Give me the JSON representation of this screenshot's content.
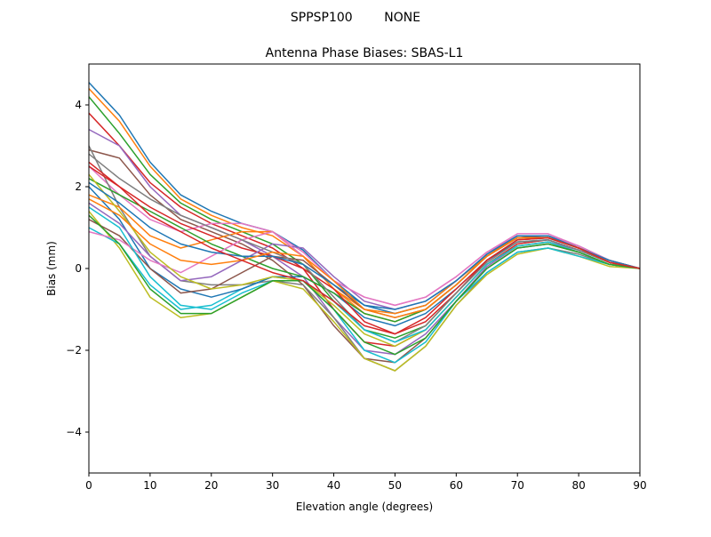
{
  "chart_data": {
    "type": "line",
    "suptitle": "SPPSP100        NONE",
    "title": "Antenna Phase Biases: SBAS-L1",
    "xlabel": "Elevation angle (degrees)",
    "ylabel": "Bias (mm)",
    "xlim": [
      0,
      90
    ],
    "ylim": [
      -5,
      5
    ],
    "xticks": [
      0,
      10,
      20,
      30,
      40,
      50,
      60,
      70,
      80,
      90
    ],
    "yticks": [
      -4,
      -2,
      0,
      2,
      4
    ],
    "ytick_labels": [
      "−4",
      "−2",
      "0",
      "2",
      "4"
    ],
    "grid": false,
    "legend": "none",
    "colors": [
      "#1f77b4",
      "#ff7f0e",
      "#2ca02c",
      "#d62728",
      "#9467bd",
      "#8c564b",
      "#e377c2",
      "#7f7f7f",
      "#bcbd22",
      "#17becf"
    ],
    "x": [
      0,
      5,
      10,
      15,
      20,
      25,
      30,
      35,
      40,
      45,
      50,
      55,
      60,
      65,
      70,
      75,
      80,
      85,
      90
    ],
    "series": [
      {
        "values": [
          4.55,
          3.75,
          2.6,
          1.8,
          1.4,
          1.1,
          0.9,
          0.45,
          -0.3,
          -0.9,
          -1.1,
          -0.9,
          -0.3,
          0.35,
          0.8,
          0.8,
          0.55,
          0.2,
          0
        ]
      },
      {
        "values": [
          4.4,
          3.6,
          2.5,
          1.7,
          1.3,
          1.0,
          0.8,
          0.3,
          -0.5,
          -1.1,
          -1.3,
          -1.0,
          -0.4,
          0.3,
          0.75,
          0.8,
          0.5,
          0.2,
          0
        ]
      },
      {
        "values": [
          4.2,
          3.3,
          2.3,
          1.6,
          1.2,
          0.9,
          0.6,
          0.1,
          -0.8,
          -1.5,
          -1.7,
          -1.4,
          -0.6,
          0.2,
          0.7,
          0.75,
          0.5,
          0.15,
          0
        ]
      },
      {
        "values": [
          3.8,
          3.0,
          2.1,
          1.5,
          1.1,
          0.8,
          0.5,
          0.0,
          -1.0,
          -1.8,
          -1.9,
          -1.5,
          -0.7,
          0.1,
          0.6,
          0.7,
          0.45,
          0.15,
          0
        ]
      },
      {
        "values": [
          3.4,
          3.0,
          2.0,
          1.3,
          1.0,
          0.7,
          0.3,
          -0.2,
          -1.2,
          -2.0,
          -2.1,
          -1.6,
          -0.8,
          0.05,
          0.55,
          0.65,
          0.45,
          0.15,
          0
        ]
      },
      {
        "values": [
          2.9,
          2.7,
          1.8,
          1.2,
          0.9,
          0.6,
          0.2,
          -0.4,
          -1.4,
          -2.2,
          -2.3,
          -1.7,
          -0.8,
          0.0,
          0.5,
          0.6,
          0.4,
          0.1,
          0
        ]
      },
      {
        "values": [
          2.5,
          1.8,
          1.2,
          0.9,
          1.1,
          1.1,
          0.9,
          0.4,
          -0.3,
          -0.7,
          -0.9,
          -0.7,
          -0.2,
          0.4,
          0.85,
          0.85,
          0.55,
          0.2,
          0
        ]
      },
      {
        "values": [
          3.0,
          1.5,
          0.3,
          -0.3,
          -0.4,
          -0.4,
          -0.3,
          -0.4,
          -1.2,
          -2.2,
          -2.5,
          -1.9,
          -0.9,
          -0.1,
          0.4,
          0.5,
          0.35,
          0.1,
          0
        ]
      },
      {
        "values": [
          1.4,
          0.5,
          -0.7,
          -1.2,
          -1.1,
          -0.7,
          -0.3,
          -0.5,
          -1.3,
          -2.2,
          -2.5,
          -1.9,
          -0.9,
          -0.15,
          0.35,
          0.5,
          0.3,
          0.05,
          0
        ]
      },
      {
        "values": [
          1.0,
          0.6,
          -0.4,
          -1.0,
          -0.9,
          -0.5,
          -0.2,
          -0.3,
          -1.0,
          -2.0,
          -2.3,
          -1.8,
          -0.8,
          -0.1,
          0.4,
          0.5,
          0.3,
          0.1,
          0
        ]
      },
      {
        "values": [
          2.0,
          1.2,
          0.0,
          -0.5,
          -0.7,
          -0.5,
          -0.2,
          -0.2,
          -0.6,
          -1.2,
          -1.4,
          -1.1,
          -0.5,
          0.2,
          0.65,
          0.7,
          0.45,
          0.15,
          0
        ]
      },
      {
        "values": [
          1.8,
          1.5,
          0.8,
          0.5,
          0.7,
          0.9,
          0.9,
          0.3,
          -0.5,
          -1.0,
          -1.1,
          -0.9,
          -0.3,
          0.3,
          0.8,
          0.8,
          0.5,
          0.2,
          0
        ]
      },
      {
        "values": [
          2.2,
          1.8,
          1.4,
          1.0,
          0.6,
          0.3,
          0.0,
          -0.2,
          -0.6,
          -1.1,
          -1.3,
          -1.0,
          -0.4,
          0.3,
          0.75,
          0.8,
          0.5,
          0.2,
          0
        ]
      },
      {
        "values": [
          2.6,
          2.0,
          1.5,
          1.1,
          0.8,
          0.5,
          0.3,
          0.0,
          -0.5,
          -1.3,
          -1.6,
          -1.3,
          -0.6,
          0.2,
          0.7,
          0.75,
          0.5,
          0.15,
          0
        ]
      },
      {
        "values": [
          1.6,
          1.1,
          0.3,
          -0.3,
          -0.2,
          0.2,
          0.6,
          0.5,
          -0.2,
          -0.8,
          -1.0,
          -0.8,
          -0.3,
          0.35,
          0.8,
          0.8,
          0.55,
          0.2,
          0
        ]
      },
      {
        "values": [
          1.2,
          0.8,
          0.0,
          -0.6,
          -0.5,
          -0.1,
          0.3,
          0.2,
          -0.4,
          -1.0,
          -1.2,
          -1.0,
          -0.4,
          0.3,
          0.75,
          0.8,
          0.5,
          0.2,
          0
        ]
      },
      {
        "values": [
          0.9,
          0.7,
          0.2,
          -0.1,
          0.3,
          0.7,
          0.9,
          0.3,
          -0.3,
          -0.7,
          -0.9,
          -0.7,
          -0.2,
          0.4,
          0.8,
          0.8,
          0.55,
          0.2,
          0
        ]
      },
      {
        "values": [
          2.8,
          2.2,
          1.7,
          1.3,
          1.0,
          0.7,
          0.4,
          0.1,
          -0.7,
          -1.5,
          -1.8,
          -1.4,
          -0.6,
          0.15,
          0.65,
          0.7,
          0.45,
          0.15,
          0
        ]
      },
      {
        "values": [
          2.3,
          1.4,
          0.4,
          -0.2,
          -0.5,
          -0.4,
          -0.2,
          -0.3,
          -0.9,
          -1.6,
          -1.9,
          -1.5,
          -0.7,
          0.1,
          0.55,
          0.65,
          0.4,
          0.1,
          0
        ]
      },
      {
        "values": [
          1.5,
          1.0,
          -0.2,
          -0.9,
          -1.0,
          -0.6,
          -0.3,
          -0.3,
          -0.8,
          -1.5,
          -1.8,
          -1.5,
          -0.7,
          0.1,
          0.55,
          0.65,
          0.4,
          0.1,
          0
        ]
      },
      {
        "values": [
          2.1,
          1.6,
          1.0,
          0.6,
          0.4,
          0.3,
          0.3,
          0.1,
          -0.4,
          -0.9,
          -1.0,
          -0.8,
          -0.3,
          0.35,
          0.8,
          0.8,
          0.5,
          0.2,
          0
        ]
      },
      {
        "values": [
          1.7,
          1.3,
          0.6,
          0.2,
          0.1,
          0.2,
          0.4,
          0.3,
          -0.3,
          -1.0,
          -1.2,
          -1.0,
          -0.4,
          0.3,
          0.75,
          0.75,
          0.5,
          0.15,
          0
        ]
      },
      {
        "values": [
          1.3,
          0.6,
          -0.5,
          -1.1,
          -1.1,
          -0.7,
          -0.3,
          -0.3,
          -1.0,
          -1.8,
          -2.1,
          -1.7,
          -0.8,
          0.0,
          0.5,
          0.6,
          0.4,
          0.1,
          0
        ]
      },
      {
        "values": [
          2.5,
          2.0,
          1.3,
          0.9,
          0.5,
          0.2,
          -0.1,
          -0.3,
          -0.8,
          -1.4,
          -1.6,
          -1.2,
          -0.5,
          0.2,
          0.7,
          0.75,
          0.5,
          0.15,
          0
        ]
      }
    ]
  }
}
